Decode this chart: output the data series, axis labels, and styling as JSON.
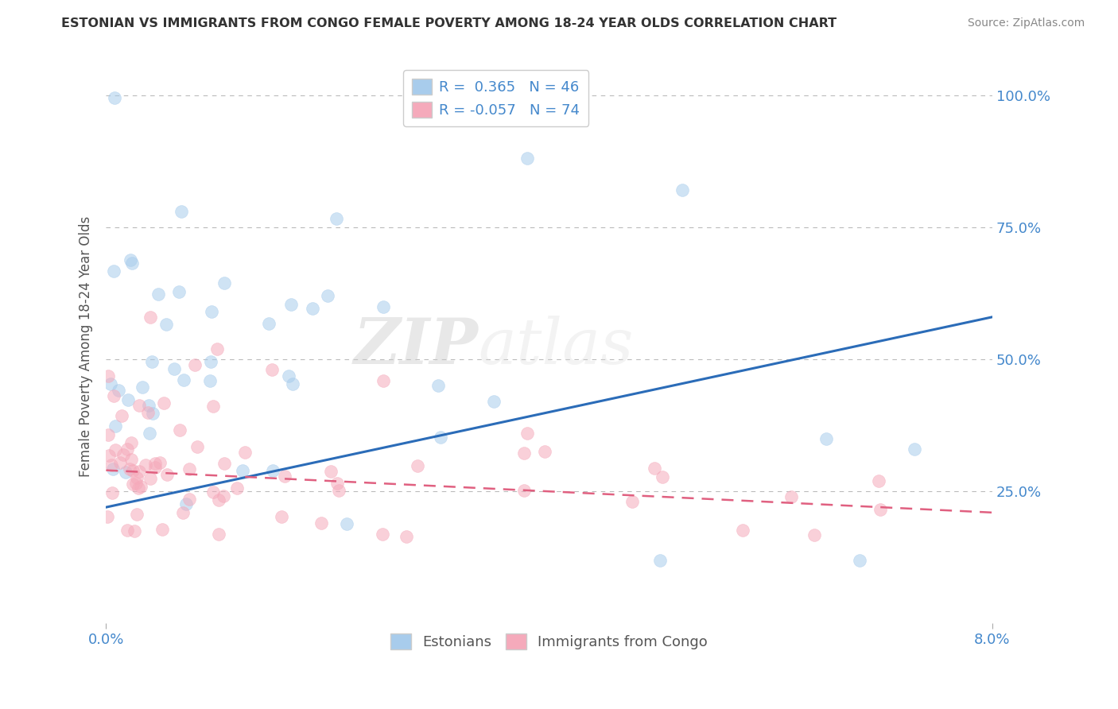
{
  "title": "ESTONIAN VS IMMIGRANTS FROM CONGO FEMALE POVERTY AMONG 18-24 YEAR OLDS CORRELATION CHART",
  "source": "Source: ZipAtlas.com",
  "ylabel": "Female Poverty Among 18-24 Year Olds",
  "xlim": [
    0.0,
    0.08
  ],
  "ylim": [
    0.0,
    1.05
  ],
  "ytick_vals": [
    0.25,
    0.5,
    0.75,
    1.0
  ],
  "ytick_labels": [
    "25.0%",
    "50.0%",
    "75.0%",
    "100.0%"
  ],
  "watermark": "ZIPatlas",
  "blue_R": 0.365,
  "blue_N": 46,
  "pink_R": -0.057,
  "pink_N": 74,
  "blue_color": "#A8CCEC",
  "pink_color": "#F5AABB",
  "blue_line_color": "#2B6CB8",
  "pink_line_color": "#E06080",
  "legend_label_blue": "Estonians",
  "legend_label_pink": "Immigrants from Congo",
  "background_color": "#FFFFFF",
  "grid_color": "#BBBBBB",
  "title_color": "#333333",
  "source_color": "#888888",
  "axis_label_color": "#555555",
  "tick_label_color": "#4488CC"
}
